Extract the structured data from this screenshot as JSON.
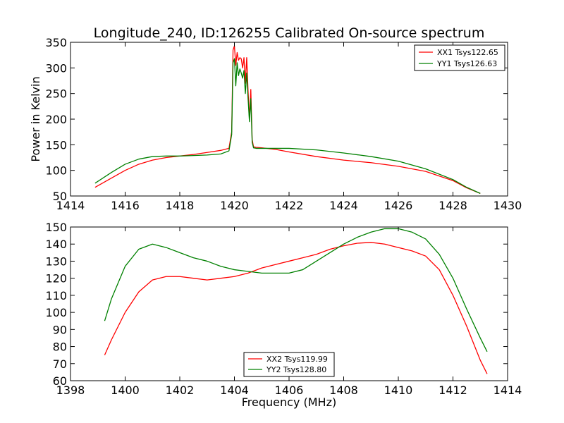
{
  "chart_data": [
    {
      "type": "line",
      "title": "Longitude_240, ID:126255 Calibrated On-source spectrum",
      "xlabel": "",
      "ylabel": "Power in Kelvin",
      "xlim": [
        1414,
        1430
      ],
      "ylim": [
        50,
        350
      ],
      "xticks": [
        "1414",
        "1416",
        "1418",
        "1420",
        "1422",
        "1424",
        "1426",
        "1428",
        "1430"
      ],
      "yticks": [
        "50",
        "100",
        "150",
        "200",
        "250",
        "300",
        "350"
      ],
      "grid": false,
      "legend": "top-right",
      "series": [
        {
          "name": "XX1 Tsys122.65",
          "color": "#ff0000",
          "x": [
            1414.9,
            1415.5,
            1416.0,
            1416.5,
            1417.0,
            1417.5,
            1418.0,
            1418.5,
            1419.0,
            1419.5,
            1419.8,
            1419.9,
            1419.95,
            1420.0,
            1420.05,
            1420.1,
            1420.15,
            1420.2,
            1420.25,
            1420.3,
            1420.35,
            1420.4,
            1420.45,
            1420.5,
            1420.55,
            1420.6,
            1420.65,
            1420.7,
            1420.8,
            1421.0,
            1421.5,
            1422.0,
            1423.0,
            1424.0,
            1425.0,
            1426.0,
            1427.0,
            1428.0,
            1428.5,
            1429.0
          ],
          "y": [
            67,
            85,
            100,
            112,
            120,
            125,
            128,
            131,
            135,
            139,
            143,
            175,
            335,
            343,
            305,
            330,
            315,
            320,
            318,
            300,
            320,
            270,
            320,
            255,
            200,
            258,
            160,
            146,
            145,
            144,
            141,
            136,
            127,
            120,
            115,
            108,
            98,
            80,
            66,
            55
          ]
        },
        {
          "name": "YY1 Tsys126.63",
          "color": "#008000",
          "x": [
            1414.9,
            1415.5,
            1416.0,
            1416.5,
            1417.0,
            1417.5,
            1418.0,
            1418.5,
            1419.0,
            1419.5,
            1419.8,
            1419.9,
            1419.95,
            1420.0,
            1420.05,
            1420.1,
            1420.15,
            1420.2,
            1420.25,
            1420.3,
            1420.35,
            1420.4,
            1420.45,
            1420.5,
            1420.55,
            1420.6,
            1420.65,
            1420.7,
            1420.8,
            1421.0,
            1421.5,
            1422.0,
            1423.0,
            1424.0,
            1425.0,
            1426.0,
            1427.0,
            1428.0,
            1428.5,
            1429.0
          ],
          "y": [
            75,
            96,
            112,
            122,
            127,
            128,
            128,
            129,
            130,
            132,
            138,
            170,
            310,
            318,
            265,
            310,
            285,
            298,
            290,
            280,
            295,
            250,
            290,
            240,
            195,
            240,
            155,
            144,
            143,
            143,
            143,
            143,
            140,
            134,
            127,
            118,
            103,
            82,
            67,
            55
          ]
        }
      ]
    },
    {
      "type": "line",
      "title": "",
      "xlabel": "Frequency (MHz)",
      "ylabel": "",
      "xlim": [
        1398,
        1414
      ],
      "ylim": [
        60,
        150
      ],
      "xticks": [
        "1398",
        "1400",
        "1402",
        "1404",
        "1406",
        "1408",
        "1410",
        "1412",
        "1414"
      ],
      "yticks": [
        "60",
        "70",
        "80",
        "90",
        "100",
        "110",
        "120",
        "130",
        "140",
        "150"
      ],
      "grid": false,
      "legend": "bottom-center",
      "series": [
        {
          "name": "XX2 Tsys119.99",
          "color": "#ff0000",
          "x": [
            1399.25,
            1399.5,
            1400.0,
            1400.5,
            1401.0,
            1401.5,
            1402.0,
            1402.5,
            1403.0,
            1403.5,
            1404.0,
            1404.5,
            1405.0,
            1405.5,
            1406.0,
            1406.5,
            1407.0,
            1407.5,
            1408.0,
            1408.5,
            1409.0,
            1409.5,
            1410.0,
            1410.5,
            1411.0,
            1411.5,
            1412.0,
            1412.5,
            1413.0,
            1413.25
          ],
          "y": [
            75,
            84,
            100,
            112,
            119,
            121,
            121,
            120,
            119,
            120,
            121,
            123,
            126,
            128,
            130,
            132,
            134,
            137,
            139,
            140.5,
            141,
            140,
            138,
            136,
            133,
            125,
            110,
            92,
            72,
            64
          ]
        },
        {
          "name": "YY2 Tsys128.80",
          "color": "#008000",
          "x": [
            1399.25,
            1399.5,
            1400.0,
            1400.5,
            1401.0,
            1401.5,
            1402.0,
            1402.5,
            1403.0,
            1403.5,
            1404.0,
            1404.5,
            1405.0,
            1405.5,
            1406.0,
            1406.5,
            1407.0,
            1407.5,
            1408.0,
            1408.5,
            1409.0,
            1409.5,
            1410.0,
            1410.5,
            1411.0,
            1411.5,
            1412.0,
            1412.5,
            1413.0,
            1413.25
          ],
          "y": [
            95,
            108,
            127,
            137,
            140,
            138,
            135,
            132,
            130,
            127,
            125,
            124,
            123,
            123,
            123,
            125,
            130,
            135,
            140,
            144,
            147,
            149,
            149,
            147,
            143,
            134,
            120,
            102,
            85,
            77
          ]
        }
      ]
    }
  ]
}
